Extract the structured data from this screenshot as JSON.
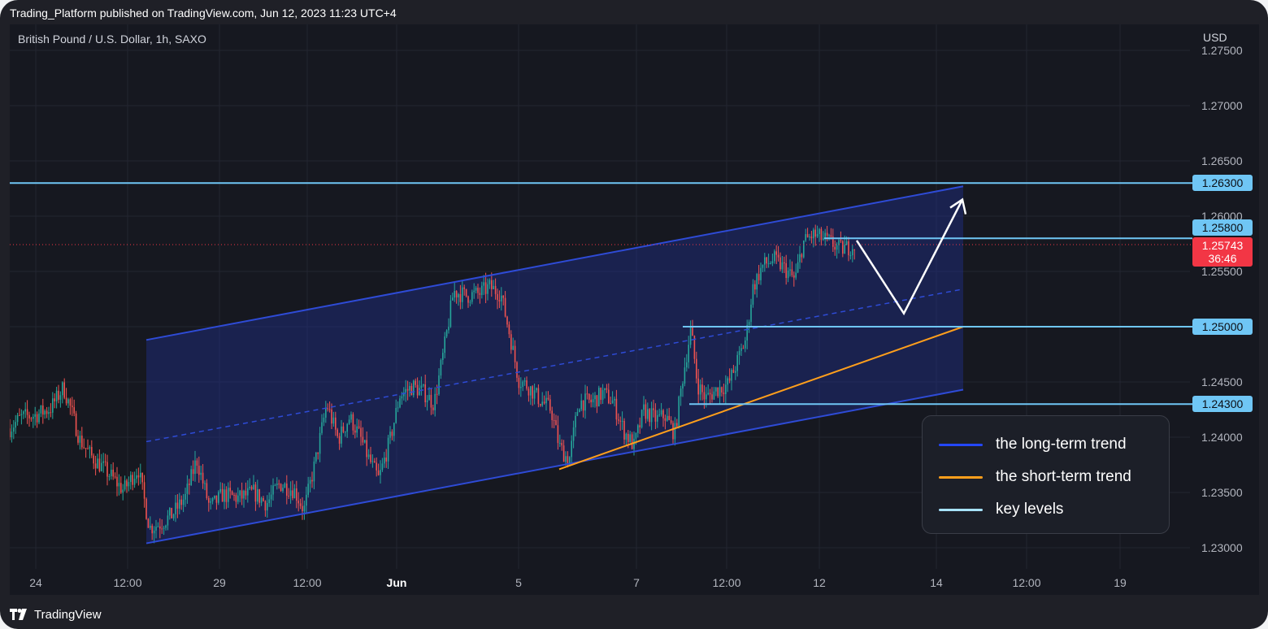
{
  "header": {
    "published_text": "Trading_Platform published on TradingView.com, Jun 12, 2023 11:23 UTC+4"
  },
  "chart_header": {
    "symbol": "British Pound / U.S. Dollar, 1h, SAXO",
    "currency": "USD"
  },
  "footer": {
    "brand": "TradingView"
  },
  "chart_data": {
    "type": "candlestick",
    "symbol": "British Pound / U.S. Dollar",
    "interval": "1h",
    "exchange": "SAXO",
    "y_axis": {
      "ticks": [
        "1.27500",
        "1.27000",
        "1.26500",
        "1.26000",
        "1.25500",
        "1.25000",
        "1.24500",
        "1.24000",
        "1.23500",
        "1.23000"
      ],
      "ylim": [
        1.2275,
        1.2779
      ]
    },
    "x_axis": {
      "ticks": [
        "24",
        "12:00",
        "29",
        "12:00",
        "Jun",
        "5",
        "7",
        "12:00",
        "12",
        "14",
        "12:00",
        "19"
      ],
      "bold_ticks": [
        "Jun"
      ]
    },
    "grid": true,
    "price_path": [
      [
        0,
        1.2408
      ],
      [
        14,
        1.2418
      ],
      [
        32,
        1.242
      ],
      [
        50,
        1.2426
      ],
      [
        66,
        1.2445
      ],
      [
        74,
        1.2428
      ],
      [
        86,
        1.2398
      ],
      [
        100,
        1.2383
      ],
      [
        118,
        1.237
      ],
      [
        140,
        1.2352
      ],
      [
        158,
        1.2372
      ],
      [
        172,
        1.2318
      ],
      [
        186,
        1.2322
      ],
      [
        200,
        1.233
      ],
      [
        216,
        1.2346
      ],
      [
        230,
        1.238
      ],
      [
        246,
        1.2336
      ],
      [
        262,
        1.2348
      ],
      [
        282,
        1.2345
      ],
      [
        300,
        1.235
      ],
      [
        316,
        1.234
      ],
      [
        332,
        1.2358
      ],
      [
        350,
        1.2352
      ],
      [
        362,
        1.2334
      ],
      [
        376,
        1.2378
      ],
      [
        390,
        1.243
      ],
      [
        404,
        1.2398
      ],
      [
        418,
        1.2418
      ],
      [
        430,
        1.2402
      ],
      [
        442,
        1.238
      ],
      [
        454,
        1.2362
      ],
      [
        468,
        1.2398
      ],
      [
        480,
        1.2438
      ],
      [
        496,
        1.2446
      ],
      [
        510,
        1.244
      ],
      [
        522,
        1.243
      ],
      [
        534,
        1.2478
      ],
      [
        546,
        1.2532
      ],
      [
        562,
        1.2528
      ],
      [
        578,
        1.253
      ],
      [
        590,
        1.2536
      ],
      [
        604,
        1.253
      ],
      [
        616,
        1.249
      ],
      [
        626,
        1.2452
      ],
      [
        638,
        1.2446
      ],
      [
        652,
        1.2434
      ],
      [
        666,
        1.2425
      ],
      [
        676,
        1.2392
      ],
      [
        688,
        1.2378
      ],
      [
        700,
        1.2432
      ],
      [
        716,
        1.2432
      ],
      [
        730,
        1.244
      ],
      [
        742,
        1.2432
      ],
      [
        756,
        1.2405
      ],
      [
        768,
        1.2392
      ],
      [
        780,
        1.2424
      ],
      [
        796,
        1.2416
      ],
      [
        806,
        1.242
      ],
      [
        818,
        1.2403
      ],
      [
        828,
        1.2454
      ],
      [
        838,
        1.2498
      ],
      [
        846,
        1.2448
      ],
      [
        856,
        1.2435
      ],
      [
        870,
        1.2443
      ],
      [
        884,
        1.2448
      ],
      [
        896,
        1.247
      ],
      [
        906,
        1.249
      ],
      [
        914,
        1.2535
      ],
      [
        926,
        1.2555
      ],
      [
        940,
        1.2561
      ],
      [
        954,
        1.2552
      ],
      [
        966,
        1.2542
      ],
      [
        976,
        1.2576
      ],
      [
        988,
        1.2583
      ],
      [
        1000,
        1.258
      ],
      [
        1012,
        1.2575
      ],
      [
        1022,
        1.257
      ],
      [
        1032,
        1.2572
      ],
      [
        1040,
        1.2574
      ]
    ],
    "horizontal_levels": [
      {
        "price": "1.26300",
        "value": 1.263
      },
      {
        "price": "1.25800",
        "value": 1.258
      },
      {
        "price": "1.25000",
        "value": 1.25
      },
      {
        "price": "1.24300",
        "value": 1.243
      }
    ],
    "current_price": {
      "price": "1.25743",
      "value": 1.25743,
      "countdown": "36:46"
    },
    "trend_channel": {
      "upper": [
        [
          0,
          1.2488
        ],
        [
          1005,
          1.2627
        ]
      ],
      "middle": [
        [
          0,
          1.2396
        ],
        [
          1005,
          1.2534
        ]
      ],
      "lower": [
        [
          0,
          1.2304
        ],
        [
          1005,
          1.2443
        ]
      ]
    },
    "short_term_trendline": [
      [
        508,
        1.2371
      ],
      [
        1005,
        1.25
      ]
    ],
    "projection_arrow": [
      [
        1040,
        1.2578
      ],
      [
        1098,
        1.2512
      ],
      [
        1170,
        1.2615
      ]
    ],
    "legend": [
      {
        "label": "the long-term trend",
        "color": "#2447ff"
      },
      {
        "label": "the short-term trend",
        "color": "#ff9f1c"
      },
      {
        "label": "key levels",
        "color": "#a7e2ff"
      }
    ],
    "colors": {
      "up": "#26a69a",
      "down": "#ef5350",
      "channel": "#2e4bd6",
      "channel_fill": "#1f2f8a",
      "levels": "#6fc6f5",
      "short_trend": "#ff9f1c",
      "current": "#f23645"
    }
  }
}
